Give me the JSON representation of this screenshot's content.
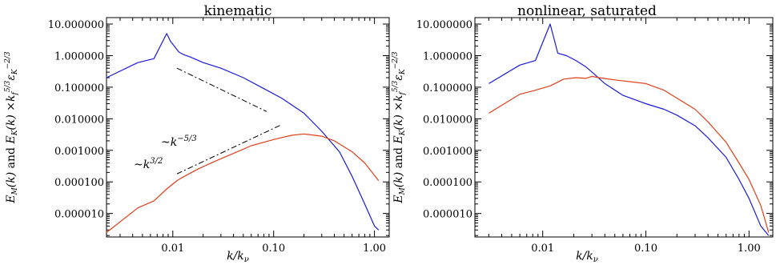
{
  "chart_data": [
    {
      "type": "line",
      "title": "kinematic",
      "xlabel": "k/kν",
      "ylabel": "E_M(k) and E_K(k) ×k_f^{5/3}ε_K^{-2/3}",
      "ylabel_parts": [
        "E",
        "M",
        "(k)",
        "and",
        "E",
        "K",
        "(k)",
        "×k",
        "f",
        "5/3",
        "ε",
        "K",
        "−2/3"
      ],
      "x_scale": "log",
      "y_scale": "log",
      "xlim": [
        0.0022,
        1.4
      ],
      "ylim": [
        1.8e-06,
        16
      ],
      "x_ticks": [
        0.01,
        0.1,
        1.0
      ],
      "x_tick_labels": [
        "0.01",
        "0.10",
        "1.00"
      ],
      "y_ticks": [
        10,
        1,
        0.1,
        0.01,
        0.001,
        0.0001,
        1e-05
      ],
      "y_tick_labels": [
        "10.000000",
        "1.000000",
        "0.100000",
        "0.010000",
        "0.001000",
        "0.000100",
        "0.000010"
      ],
      "series": [
        {
          "color": "#1a1adc",
          "x": [
            0.0022,
            0.0045,
            0.0065,
            0.0087,
            0.0095,
            0.0115,
            0.013,
            0.015,
            0.02,
            0.03,
            0.05,
            0.08,
            0.12,
            0.2,
            0.3,
            0.45,
            0.6,
            0.8,
            1.0,
            1.1
          ],
          "y": [
            0.2,
            0.6,
            0.8,
            5,
            2.8,
            1.3,
            1.05,
            0.9,
            0.6,
            0.4,
            0.2,
            0.09,
            0.045,
            0.015,
            0.004,
            0.0009,
            0.00015,
            2e-05,
            4e-06,
            3e-06
          ]
        },
        {
          "color": "#e0401a",
          "x": [
            0.0022,
            0.0045,
            0.0065,
            0.0087,
            0.011,
            0.013,
            0.018,
            0.025,
            0.04,
            0.06,
            0.1,
            0.15,
            0.2,
            0.3,
            0.4,
            0.6,
            0.8,
            1.1
          ],
          "y": [
            2.5e-06,
            1.5e-05,
            2.5e-05,
            6e-05,
            0.00011,
            0.00015,
            0.00026,
            0.00042,
            0.0008,
            0.0014,
            0.0022,
            0.003,
            0.0033,
            0.0028,
            0.002,
            0.0009,
            0.0004,
            0.00011
          ]
        }
      ],
      "reference_lines": [
        {
          "label": "~k^{-5/3}",
          "base": "~k",
          "exp": "−5/3",
          "x": [
            0.011,
            0.085
          ],
          "y": [
            0.4,
            0.017
          ]
        },
        {
          "label": "~k^{3/2}",
          "base": "~k",
          "exp": "3/2",
          "x": [
            0.011,
            0.12
          ],
          "y": [
            0.00018,
            0.0065
          ]
        }
      ],
      "grid": false
    },
    {
      "type": "line",
      "title": "nonlinear, saturated",
      "xlabel": "k/kν",
      "ylabel": "E_M(k) and E_K(k) ×k_f^{5/3}ε_K^{-2/3}",
      "ylabel_parts": [
        "E",
        "M",
        "(k)",
        "and",
        "E",
        "K",
        "(k)",
        "×k",
        "f",
        "5/3",
        "ε",
        "K",
        "−2/3"
      ],
      "x_scale": "log",
      "y_scale": "log",
      "xlim": [
        0.0022,
        1.7
      ],
      "ylim": [
        1.8e-06,
        16
      ],
      "x_ticks": [
        0.01,
        0.1,
        1.0
      ],
      "x_tick_labels": [
        "0.01",
        "0.10",
        "1.00"
      ],
      "y_ticks": [
        10,
        1,
        0.1,
        0.01,
        0.001,
        0.0001,
        1e-05
      ],
      "y_tick_labels": [
        "10.000000",
        "1.000000",
        "0.100000",
        "0.010000",
        "0.001000",
        "0.000100",
        "0.000010"
      ],
      "series": [
        {
          "color": "#1a1adc",
          "x": [
            0.003,
            0.006,
            0.0085,
            0.0118,
            0.014,
            0.017,
            0.021,
            0.026,
            0.032,
            0.04,
            0.06,
            0.1,
            0.15,
            0.2,
            0.3,
            0.4,
            0.6,
            0.8,
            1.0,
            1.3,
            1.55
          ],
          "y": [
            0.13,
            0.5,
            0.7,
            10,
            1.2,
            1.0,
            0.7,
            0.45,
            0.25,
            0.13,
            0.055,
            0.03,
            0.02,
            0.013,
            0.006,
            0.0025,
            0.0006,
            0.00012,
            3e-05,
            4e-06,
            2e-06
          ]
        },
        {
          "color": "#e0401a",
          "x": [
            0.003,
            0.006,
            0.0085,
            0.0118,
            0.016,
            0.021,
            0.026,
            0.03,
            0.035,
            0.05,
            0.1,
            0.15,
            0.2,
            0.3,
            0.4,
            0.6,
            0.8,
            1.0,
            1.3,
            1.55
          ],
          "y": [
            0.015,
            0.06,
            0.08,
            0.11,
            0.18,
            0.2,
            0.19,
            0.22,
            0.2,
            0.17,
            0.13,
            0.08,
            0.045,
            0.02,
            0.008,
            0.0018,
            0.0004,
            0.00012,
            1.8e-05,
            2.5e-06
          ]
        }
      ],
      "grid": false
    }
  ]
}
